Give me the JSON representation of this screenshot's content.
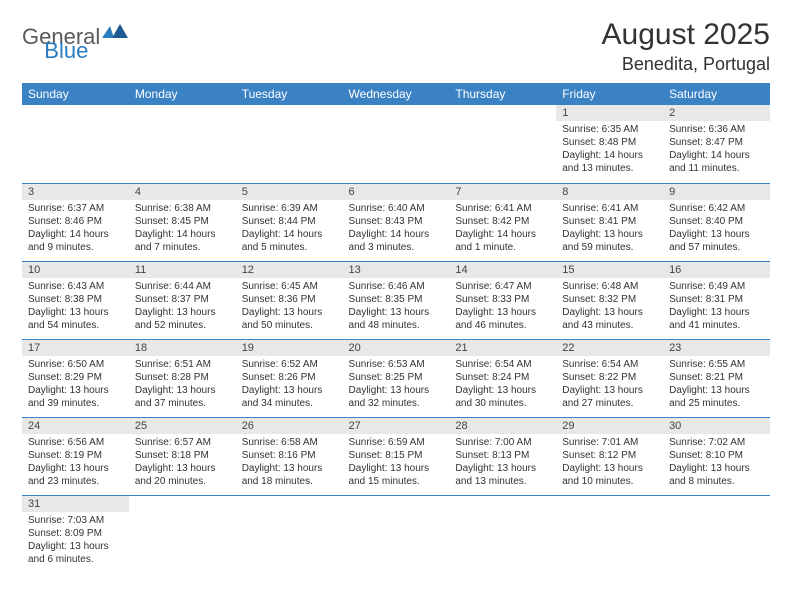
{
  "logo": {
    "general": "General",
    "blue": "Blue"
  },
  "title": "August 2025",
  "location": "Benedita, Portugal",
  "header_color": "#3b82c4",
  "daynum_bg": "#e8e8e8",
  "border_color": "#3b82c4",
  "days_of_week": [
    "Sunday",
    "Monday",
    "Tuesday",
    "Wednesday",
    "Thursday",
    "Friday",
    "Saturday"
  ],
  "weeks": [
    [
      null,
      null,
      null,
      null,
      null,
      {
        "n": "1",
        "sunrise": "Sunrise: 6:35 AM",
        "sunset": "Sunset: 8:48 PM",
        "daylight": "Daylight: 14 hours and 13 minutes."
      },
      {
        "n": "2",
        "sunrise": "Sunrise: 6:36 AM",
        "sunset": "Sunset: 8:47 PM",
        "daylight": "Daylight: 14 hours and 11 minutes."
      }
    ],
    [
      {
        "n": "3",
        "sunrise": "Sunrise: 6:37 AM",
        "sunset": "Sunset: 8:46 PM",
        "daylight": "Daylight: 14 hours and 9 minutes."
      },
      {
        "n": "4",
        "sunrise": "Sunrise: 6:38 AM",
        "sunset": "Sunset: 8:45 PM",
        "daylight": "Daylight: 14 hours and 7 minutes."
      },
      {
        "n": "5",
        "sunrise": "Sunrise: 6:39 AM",
        "sunset": "Sunset: 8:44 PM",
        "daylight": "Daylight: 14 hours and 5 minutes."
      },
      {
        "n": "6",
        "sunrise": "Sunrise: 6:40 AM",
        "sunset": "Sunset: 8:43 PM",
        "daylight": "Daylight: 14 hours and 3 minutes."
      },
      {
        "n": "7",
        "sunrise": "Sunrise: 6:41 AM",
        "sunset": "Sunset: 8:42 PM",
        "daylight": "Daylight: 14 hours and 1 minute."
      },
      {
        "n": "8",
        "sunrise": "Sunrise: 6:41 AM",
        "sunset": "Sunset: 8:41 PM",
        "daylight": "Daylight: 13 hours and 59 minutes."
      },
      {
        "n": "9",
        "sunrise": "Sunrise: 6:42 AM",
        "sunset": "Sunset: 8:40 PM",
        "daylight": "Daylight: 13 hours and 57 minutes."
      }
    ],
    [
      {
        "n": "10",
        "sunrise": "Sunrise: 6:43 AM",
        "sunset": "Sunset: 8:38 PM",
        "daylight": "Daylight: 13 hours and 54 minutes."
      },
      {
        "n": "11",
        "sunrise": "Sunrise: 6:44 AM",
        "sunset": "Sunset: 8:37 PM",
        "daylight": "Daylight: 13 hours and 52 minutes."
      },
      {
        "n": "12",
        "sunrise": "Sunrise: 6:45 AM",
        "sunset": "Sunset: 8:36 PM",
        "daylight": "Daylight: 13 hours and 50 minutes."
      },
      {
        "n": "13",
        "sunrise": "Sunrise: 6:46 AM",
        "sunset": "Sunset: 8:35 PM",
        "daylight": "Daylight: 13 hours and 48 minutes."
      },
      {
        "n": "14",
        "sunrise": "Sunrise: 6:47 AM",
        "sunset": "Sunset: 8:33 PM",
        "daylight": "Daylight: 13 hours and 46 minutes."
      },
      {
        "n": "15",
        "sunrise": "Sunrise: 6:48 AM",
        "sunset": "Sunset: 8:32 PM",
        "daylight": "Daylight: 13 hours and 43 minutes."
      },
      {
        "n": "16",
        "sunrise": "Sunrise: 6:49 AM",
        "sunset": "Sunset: 8:31 PM",
        "daylight": "Daylight: 13 hours and 41 minutes."
      }
    ],
    [
      {
        "n": "17",
        "sunrise": "Sunrise: 6:50 AM",
        "sunset": "Sunset: 8:29 PM",
        "daylight": "Daylight: 13 hours and 39 minutes."
      },
      {
        "n": "18",
        "sunrise": "Sunrise: 6:51 AM",
        "sunset": "Sunset: 8:28 PM",
        "daylight": "Daylight: 13 hours and 37 minutes."
      },
      {
        "n": "19",
        "sunrise": "Sunrise: 6:52 AM",
        "sunset": "Sunset: 8:26 PM",
        "daylight": "Daylight: 13 hours and 34 minutes."
      },
      {
        "n": "20",
        "sunrise": "Sunrise: 6:53 AM",
        "sunset": "Sunset: 8:25 PM",
        "daylight": "Daylight: 13 hours and 32 minutes."
      },
      {
        "n": "21",
        "sunrise": "Sunrise: 6:54 AM",
        "sunset": "Sunset: 8:24 PM",
        "daylight": "Daylight: 13 hours and 30 minutes."
      },
      {
        "n": "22",
        "sunrise": "Sunrise: 6:54 AM",
        "sunset": "Sunset: 8:22 PM",
        "daylight": "Daylight: 13 hours and 27 minutes."
      },
      {
        "n": "23",
        "sunrise": "Sunrise: 6:55 AM",
        "sunset": "Sunset: 8:21 PM",
        "daylight": "Daylight: 13 hours and 25 minutes."
      }
    ],
    [
      {
        "n": "24",
        "sunrise": "Sunrise: 6:56 AM",
        "sunset": "Sunset: 8:19 PM",
        "daylight": "Daylight: 13 hours and 23 minutes."
      },
      {
        "n": "25",
        "sunrise": "Sunrise: 6:57 AM",
        "sunset": "Sunset: 8:18 PM",
        "daylight": "Daylight: 13 hours and 20 minutes."
      },
      {
        "n": "26",
        "sunrise": "Sunrise: 6:58 AM",
        "sunset": "Sunset: 8:16 PM",
        "daylight": "Daylight: 13 hours and 18 minutes."
      },
      {
        "n": "27",
        "sunrise": "Sunrise: 6:59 AM",
        "sunset": "Sunset: 8:15 PM",
        "daylight": "Daylight: 13 hours and 15 minutes."
      },
      {
        "n": "28",
        "sunrise": "Sunrise: 7:00 AM",
        "sunset": "Sunset: 8:13 PM",
        "daylight": "Daylight: 13 hours and 13 minutes."
      },
      {
        "n": "29",
        "sunrise": "Sunrise: 7:01 AM",
        "sunset": "Sunset: 8:12 PM",
        "daylight": "Daylight: 13 hours and 10 minutes."
      },
      {
        "n": "30",
        "sunrise": "Sunrise: 7:02 AM",
        "sunset": "Sunset: 8:10 PM",
        "daylight": "Daylight: 13 hours and 8 minutes."
      }
    ],
    [
      {
        "n": "31",
        "sunrise": "Sunrise: 7:03 AM",
        "sunset": "Sunset: 8:09 PM",
        "daylight": "Daylight: 13 hours and 6 minutes."
      },
      null,
      null,
      null,
      null,
      null,
      null
    ]
  ]
}
